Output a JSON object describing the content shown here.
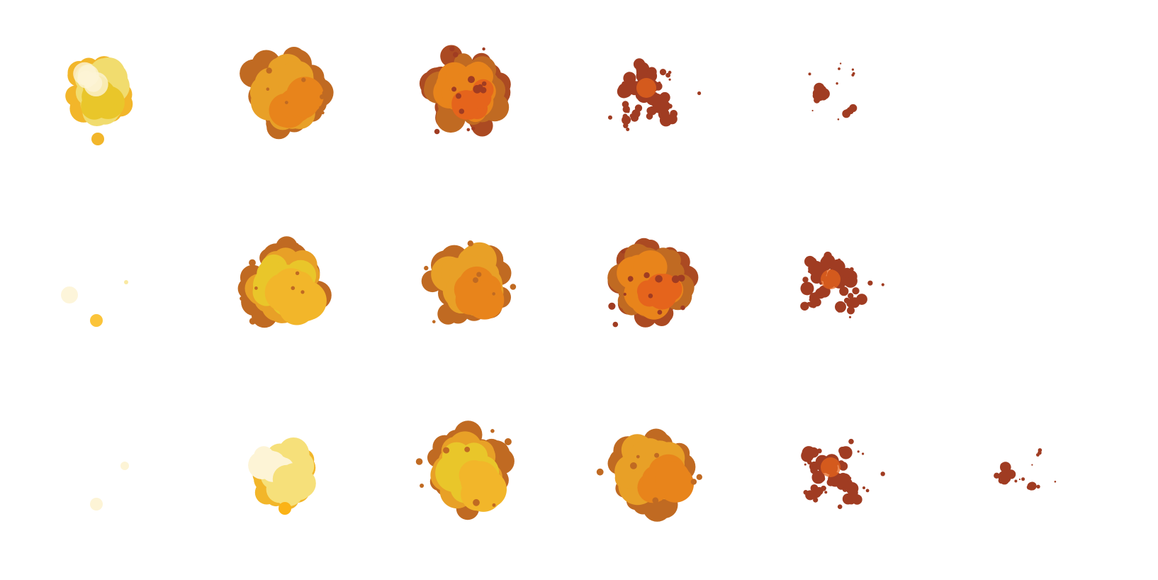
{
  "sheet": {
    "name": "explosion-sprite-sheet",
    "rows": 3,
    "columns": 6,
    "palette": {
      "pale_cream": "#fdf4d6",
      "pale_yellow": "#f6e07a",
      "light_yellow": "#f1dc6e",
      "bright_yellow": "#e9c62a",
      "amber": "#f2b62a",
      "gold_orange": "#e8a027",
      "orange": "#e8841b",
      "deep_orange": "#e5641c",
      "brown_orange": "#c06a22",
      "rust": "#ab4a22",
      "dark_rust": "#a03c22"
    },
    "frames": [
      {
        "row": 0,
        "col": 0,
        "stage": "flash"
      },
      {
        "row": 0,
        "col": 1,
        "stage": "fireball"
      },
      {
        "row": 0,
        "col": 2,
        "stage": "burning"
      },
      {
        "row": 0,
        "col": 3,
        "stage": "debris"
      },
      {
        "row": 0,
        "col": 4,
        "stage": "faint"
      },
      {
        "row": 0,
        "col": 5,
        "stage": "empty"
      },
      {
        "row": 1,
        "col": 0,
        "stage": "spark"
      },
      {
        "row": 1,
        "col": 1,
        "stage": "flash"
      },
      {
        "row": 1,
        "col": 2,
        "stage": "fireball"
      },
      {
        "row": 1,
        "col": 3,
        "stage": "burning"
      },
      {
        "row": 1,
        "col": 4,
        "stage": "debris"
      },
      {
        "row": 1,
        "col": 5,
        "stage": "empty"
      },
      {
        "row": 2,
        "col": 0,
        "stage": "spark-faint"
      },
      {
        "row": 2,
        "col": 1,
        "stage": "ignition"
      },
      {
        "row": 2,
        "col": 2,
        "stage": "flash"
      },
      {
        "row": 2,
        "col": 3,
        "stage": "fireball"
      },
      {
        "row": 2,
        "col": 4,
        "stage": "debris"
      },
      {
        "row": 2,
        "col": 5,
        "stage": "faint"
      }
    ]
  }
}
